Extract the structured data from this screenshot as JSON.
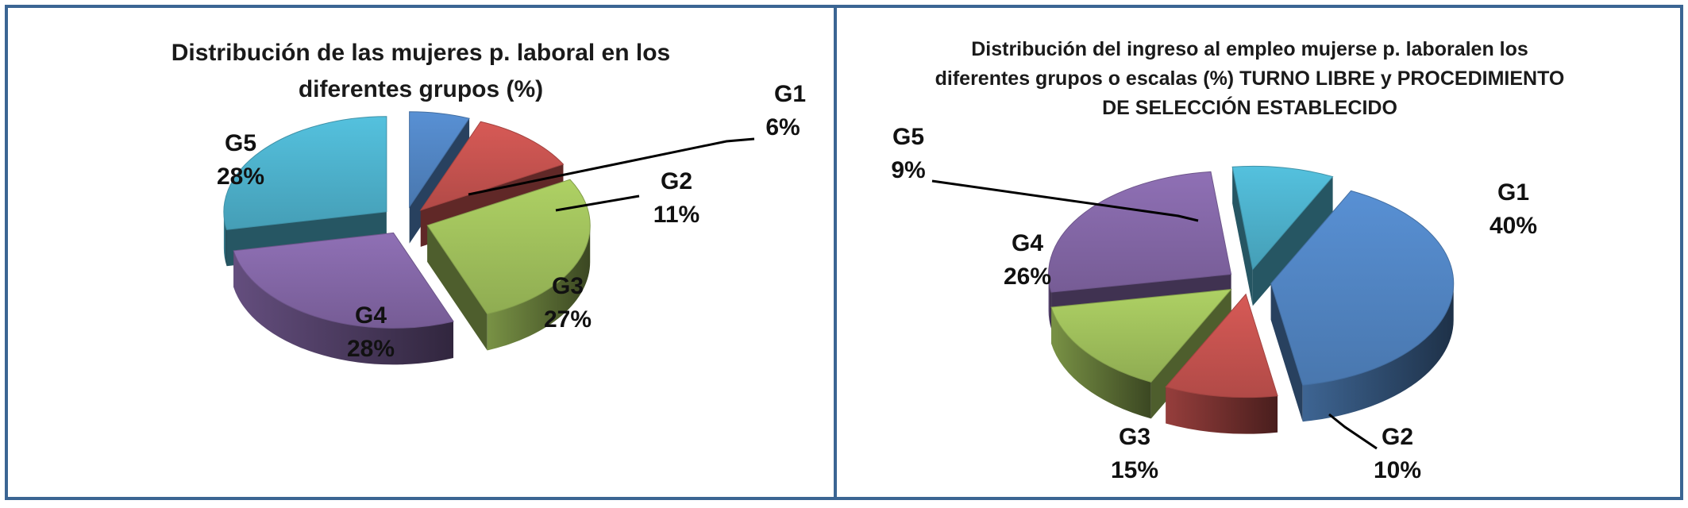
{
  "chart_data": [
    {
      "type": "pie",
      "title_lines": [
        "Distribución de las mujeres p. laboral en los",
        "diferentes grupos (%)"
      ],
      "categories": [
        "G1",
        "G2",
        "G3",
        "G4",
        "G5"
      ],
      "values": [
        6,
        11,
        27,
        28,
        28
      ],
      "value_labels": [
        "6%",
        "11%",
        "27%",
        "28%",
        "28%"
      ],
      "colors": [
        "#4f81bd",
        "#c0504d",
        "#9bbb59",
        "#8064a2",
        "#4bacc6"
      ],
      "exploded": true,
      "three_d": true
    },
    {
      "type": "pie",
      "title_lines": [
        "Distribución del ingreso al empleo mujerse p. laboralen los",
        "diferentes grupos o escalas (%)  TURNO LIBRE y PROCEDIMIENTO",
        "DE SELECCIÓN ESTABLECIDO"
      ],
      "categories": [
        "G1",
        "G2",
        "G3",
        "G4",
        "G5"
      ],
      "values": [
        40,
        10,
        15,
        26,
        9
      ],
      "value_labels": [
        "40%",
        "10%",
        "15%",
        "26%",
        "9%"
      ],
      "colors": [
        "#4f81bd",
        "#c0504d",
        "#9bbb59",
        "#8064a2",
        "#4bacc6"
      ],
      "exploded": true,
      "three_d": true
    }
  ]
}
